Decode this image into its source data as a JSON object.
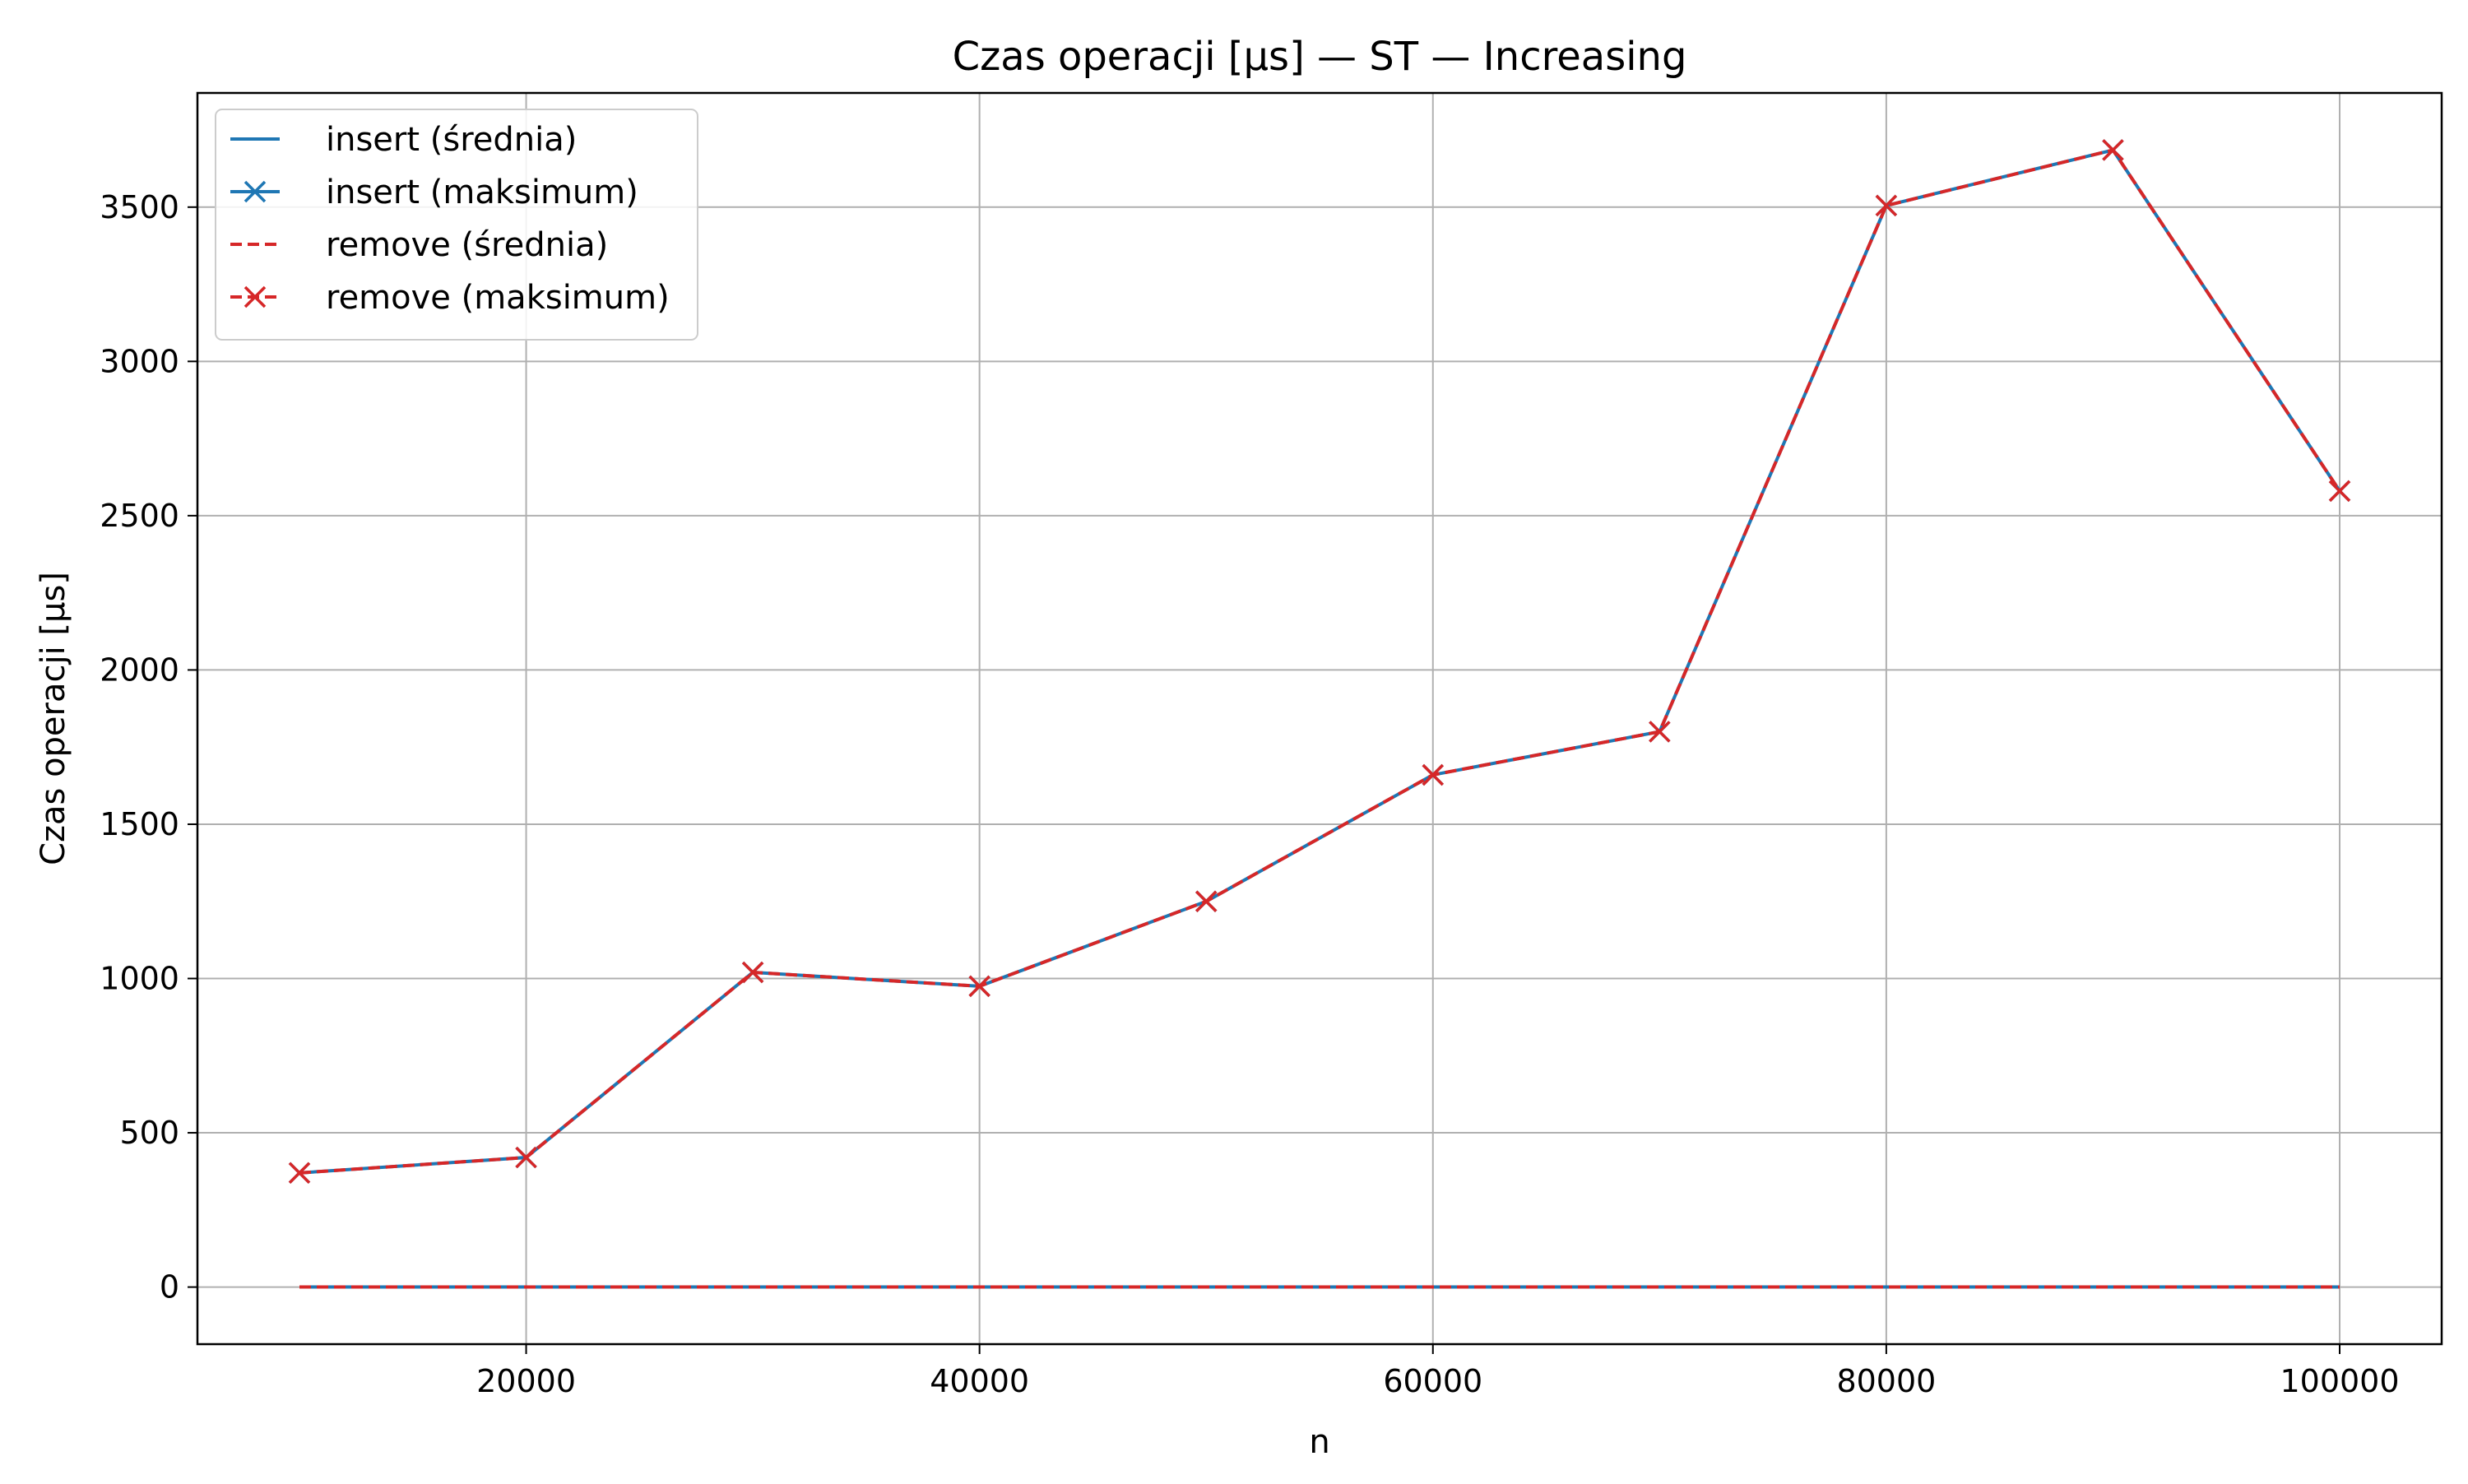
{
  "chart_data": {
    "type": "line",
    "title": "Czas operacji [µs] — ST — Increasing",
    "xlabel": "n",
    "ylabel": "Czas operacji [µs]",
    "xlim": [
      5500,
      104500
    ],
    "ylim": [
      -185,
      3870
    ],
    "xticks": [
      20000,
      40000,
      60000,
      80000,
      100000
    ],
    "yticks": [
      0,
      500,
      1000,
      1500,
      2000,
      2500,
      3000,
      3500
    ],
    "x": [
      10000,
      20000,
      30000,
      40000,
      50000,
      60000,
      70000,
      80000,
      90000,
      100000
    ],
    "grid": true,
    "legend_position": "top-left",
    "series": [
      {
        "name": "insert (średnia)",
        "color": "#1f77b4",
        "linestyle": "solid",
        "marker": "none",
        "values": [
          0.2,
          0.2,
          0.2,
          0.2,
          0.2,
          0.2,
          0.2,
          0.2,
          0.2,
          0.2
        ]
      },
      {
        "name": "insert (maksimum)",
        "color": "#1f77b4",
        "linestyle": "solid",
        "marker": "x",
        "values": [
          370,
          420,
          1020,
          975,
          1250,
          1660,
          1800,
          3505,
          3685,
          2580
        ]
      },
      {
        "name": "remove (średnia)",
        "color": "#d62728",
        "linestyle": "dashed",
        "marker": "none",
        "values": [
          0.2,
          0.2,
          0.2,
          0.2,
          0.2,
          0.2,
          0.2,
          0.2,
          0.2,
          0.2
        ]
      },
      {
        "name": "remove (maksimum)",
        "color": "#d62728",
        "linestyle": "dashed",
        "marker": "x",
        "values": [
          370,
          420,
          1020,
          975,
          1250,
          1660,
          1800,
          3505,
          3685,
          2580
        ]
      }
    ]
  }
}
